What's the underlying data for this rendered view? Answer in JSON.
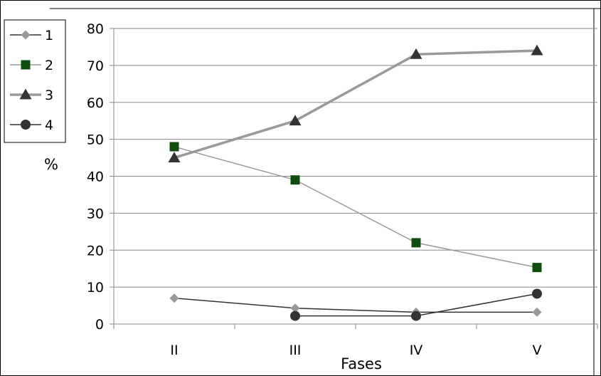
{
  "chart_data": {
    "type": "line",
    "categories": [
      "II",
      "III",
      "IV",
      "V"
    ],
    "ylabel": "%",
    "xlabel": "Fases",
    "ylim": [
      0,
      80
    ],
    "yticks": [
      0,
      10,
      20,
      30,
      40,
      50,
      60,
      70,
      80
    ],
    "grid": true,
    "legend_position": "left",
    "series": [
      {
        "name": "1",
        "values": [
          7,
          4.3,
          3.2,
          3.2
        ],
        "color": "#999999",
        "line_color": "#333333",
        "marker": "diamond"
      },
      {
        "name": "2",
        "values": [
          48,
          39,
          22,
          15.3
        ],
        "color": "#0e4d0e",
        "line_color": "#999999",
        "marker": "square"
      },
      {
        "name": "3",
        "values": [
          45,
          55,
          73,
          74
        ],
        "color": "#333333",
        "line_color": "#999999",
        "marker": "triangle"
      },
      {
        "name": "4",
        "values": [
          null,
          2.2,
          2.2,
          8.2
        ],
        "color": "#333333",
        "line_color": "#333333",
        "marker": "circle"
      }
    ]
  }
}
